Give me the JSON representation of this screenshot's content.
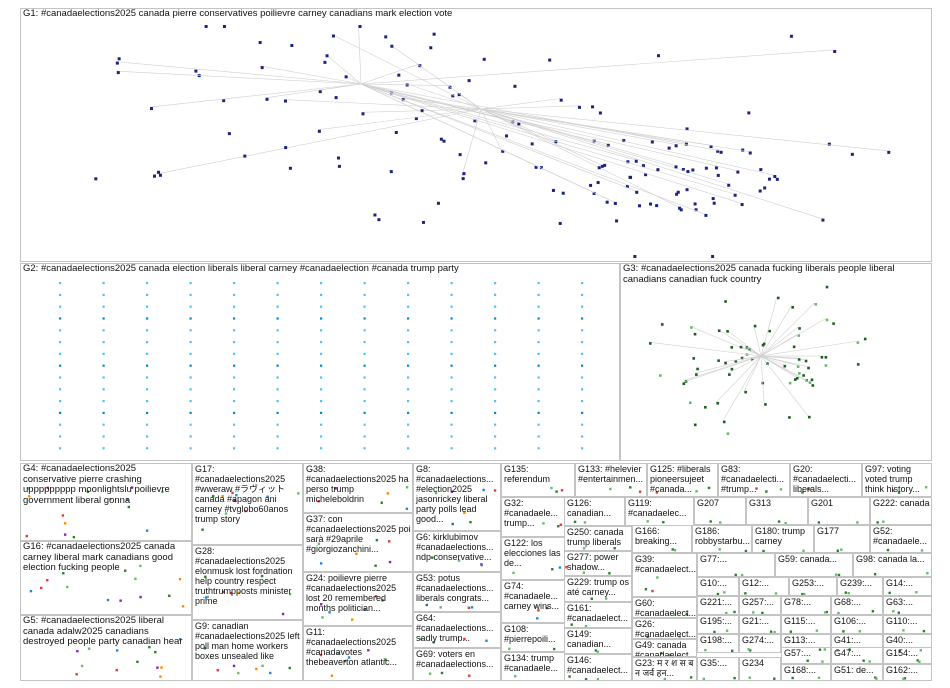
{
  "colors": {
    "g1": "#1a237e",
    "g2": "#4fc3f7",
    "g3": "#1b5e20",
    "g4": "#2e7d32",
    "edge": "#d0d0d0"
  },
  "groups": [
    {
      "id": "G1",
      "label": "G1: #canadaelections2025 canada pierre conservatives poilievre carney canadians mark election vote"
    },
    {
      "id": "G2",
      "label": "G2: #canadaelections2025 canada election liberals liberal carney #canadaelection #canada trump party"
    },
    {
      "id": "G3",
      "label": "G3: #canadaelections2025 canada fucking liberals people liberal canadians canadian fuck country"
    },
    {
      "id": "G4",
      "label": "G4: #canadaelections2025 conservative pierre crashing uppppppppp moonlightslu poilievre government liberal gonna"
    },
    {
      "id": "G16",
      "label": "G16: #canadaelections2025 canada carney liberal mark canadians good election fucking people"
    },
    {
      "id": "G5",
      "label": "G5: #canadaelections2025 liberal canada adalw2025 canadians destroyed people party canadian hear"
    },
    {
      "id": "G17",
      "label": "G17: #canadaelections2025 #wweraw #ラヴィット canada #apagon ani carney #tvglobo60anos trump story"
    },
    {
      "id": "G28",
      "label": "G28: #canadaelections2025 elonmusk lost fordnation help country respect truthtrumpposts minister prime"
    },
    {
      "id": "G9",
      "label": "G9: canadian #canadaelections2025 left poll man home workers boxes unsealed like"
    },
    {
      "id": "G38",
      "label": "G38: #canadaelections2025 ha perso trump micheleboldrin"
    },
    {
      "id": "G37",
      "label": "G37: con #canadaelections2025 poi sarà #29aprile #giorgiozanchini..."
    },
    {
      "id": "G24",
      "label": "G24: poilievre pierre #canadaelections2025 lost 20 remembered months politician..."
    },
    {
      "id": "G11",
      "label": "G11: #canadaelections2025 #canadavotes thebeaverton atlantic..."
    },
    {
      "id": "G8",
      "label": "G8: #canadaelections... #election2025 jasonrickey liberal party polls lead good..."
    },
    {
      "id": "G6",
      "label": "G6: kirklubimov #canadaelections... ndp conservative..."
    },
    {
      "id": "G53",
      "label": "G53: potus #canadaelections... liberals congrats..."
    },
    {
      "id": "G64",
      "label": "G64: #canadaelections... sadly trump..."
    },
    {
      "id": "G69",
      "label": "G69: voters en #canadaelections..."
    },
    {
      "id": "G135",
      "label": "G135: referendum"
    },
    {
      "id": "G32",
      "label": "G32: #canadaele... trump..."
    },
    {
      "id": "G122",
      "label": "G122: los elecciones las de..."
    },
    {
      "id": "G74",
      "label": "G74: #canadaele... carney wins..."
    },
    {
      "id": "G108",
      "label": "G108: #pierrepoili..."
    },
    {
      "id": "G134",
      "label": "G134: trump #canadaele..."
    },
    {
      "id": "G133",
      "label": "G133: #helevier #entertainmen..."
    },
    {
      "id": "G126",
      "label": "G126: canadian..."
    },
    {
      "id": "G119",
      "label": "G119: #canadaelec..."
    },
    {
      "id": "G250",
      "label": "G250: canada trump liberals"
    },
    {
      "id": "G277",
      "label": "G277: power shadow..."
    },
    {
      "id": "G229",
      "label": "G229: trump os até carney..."
    },
    {
      "id": "G161",
      "label": "G161: #canadaelect..."
    },
    {
      "id": "G149",
      "label": "G149: canadian..."
    },
    {
      "id": "G146",
      "label": "G146: #canadaelect..."
    },
    {
      "id": "G125",
      "label": "G125: #liberals pioneersujeet #canada..."
    },
    {
      "id": "G83",
      "label": "G83: #canadaelecti... #trump..."
    },
    {
      "id": "G20",
      "label": "G20: #canadaelecti... liberals..."
    },
    {
      "id": "G97",
      "label": "G97: voting voted trump think history..."
    },
    {
      "id": "G207",
      "label": "G207"
    },
    {
      "id": "G313",
      "label": "G313"
    },
    {
      "id": "G201",
      "label": "G201"
    },
    {
      "id": "G222",
      "label": "G222: canada"
    },
    {
      "id": "G166",
      "label": "G166: breaking..."
    },
    {
      "id": "G186",
      "label": "G186: robbystarbu..."
    },
    {
      "id": "G180",
      "label": "G180: trump carney"
    },
    {
      "id": "G177",
      "label": "G177"
    },
    {
      "id": "G52",
      "label": "G52: #canadaele..."
    },
    {
      "id": "G39",
      "label": "G39: #canadaelect..."
    },
    {
      "id": "G77",
      "label": "G77:..."
    },
    {
      "id": "G59",
      "label": "G59: canada..."
    },
    {
      "id": "G98",
      "label": "G98: canada la..."
    },
    {
      "id": "G10",
      "label": "G10:..."
    },
    {
      "id": "G12",
      "label": "G12:..."
    },
    {
      "id": "G253",
      "label": "G253:..."
    },
    {
      "id": "G239",
      "label": "G239:..."
    },
    {
      "id": "G14",
      "label": "G14:..."
    },
    {
      "id": "G60",
      "label": "G60: #canadaelect..."
    },
    {
      "id": "G221",
      "label": "G221:..."
    },
    {
      "id": "G257",
      "label": "G257:..."
    },
    {
      "id": "G78",
      "label": "G78:..."
    },
    {
      "id": "G68",
      "label": "G68:..."
    },
    {
      "id": "G63",
      "label": "G63:..."
    },
    {
      "id": "G26",
      "label": "G26: #canadaelect..."
    },
    {
      "id": "G195",
      "label": "G195:..."
    },
    {
      "id": "G21",
      "label": "G21:..."
    },
    {
      "id": "G115",
      "label": "G115:..."
    },
    {
      "id": "G106",
      "label": "G106:..."
    },
    {
      "id": "G110",
      "label": "G110:..."
    },
    {
      "id": "G49",
      "label": "G49: canada #canadaelect..."
    },
    {
      "id": "G198",
      "label": "G198:..."
    },
    {
      "id": "G274",
      "label": "G274:..."
    },
    {
      "id": "G113",
      "label": "G113:..."
    },
    {
      "id": "G41",
      "label": "G41:..."
    },
    {
      "id": "G40",
      "label": "G40:..."
    },
    {
      "id": "G23",
      "label": "G23: म र श स ब न जर्व हन..."
    },
    {
      "id": "G35",
      "label": "G35:..."
    },
    {
      "id": "G234",
      "label": "G234"
    },
    {
      "id": "G57",
      "label": "G57:..."
    },
    {
      "id": "G47",
      "label": "G47:..."
    },
    {
      "id": "G154",
      "label": "G154:..."
    },
    {
      "id": "G168",
      "label": "G168:..."
    },
    {
      "id": "G51",
      "label": "G51: de..."
    },
    {
      "id": "G162",
      "label": "G162:..."
    }
  ]
}
